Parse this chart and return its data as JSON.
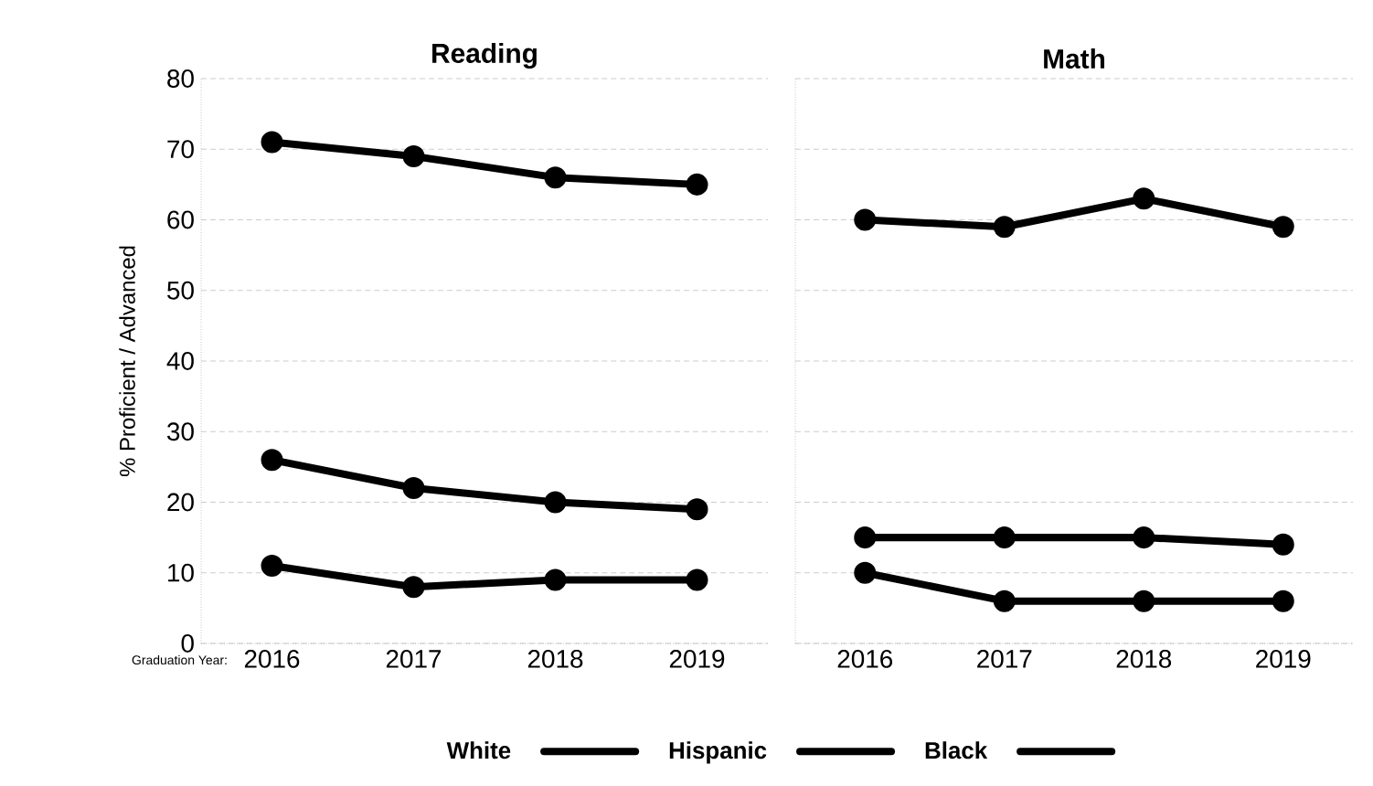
{
  "chart_data": [
    {
      "type": "line",
      "title": "Reading",
      "xlabel": "Graduation Year:",
      "ylabel": "% Proficient / Advanced",
      "categories": [
        "2016",
        "2017",
        "2018",
        "2019"
      ],
      "series": [
        {
          "name": "White",
          "color": "#000000",
          "values": [
            71,
            69,
            66,
            65
          ]
        },
        {
          "name": "Hispanic",
          "color": "#000000",
          "values": [
            26,
            22,
            20,
            19
          ]
        },
        {
          "name": "Black",
          "color": "#000000",
          "values": [
            11,
            8,
            9,
            9
          ]
        }
      ],
      "ylim": [
        0,
        80
      ],
      "yticks": [
        0,
        10,
        20,
        30,
        40,
        50,
        60,
        70,
        80
      ],
      "grid": "y",
      "legend": "bottom",
      "marker": "circle",
      "line_style": "solid"
    },
    {
      "type": "line",
      "title": "Math",
      "categories": [
        "2016",
        "2017",
        "2018",
        "2019"
      ],
      "series": [
        {
          "color": "#000000",
          "values": [
            60,
            59,
            63,
            59
          ]
        },
        {
          "color": "#000000",
          "values": [
            15,
            15,
            15,
            14
          ]
        },
        {
          "color": "#000000",
          "values": [
            10,
            6,
            6,
            6
          ]
        }
      ],
      "ylim": [
        0,
        80
      ],
      "yticks": [
        0,
        10,
        20,
        30,
        40,
        50,
        60,
        70,
        80
      ],
      "grid": "y",
      "tick_labels": "x",
      "marker": "circle",
      "line_style": "solid"
    }
  ]
}
